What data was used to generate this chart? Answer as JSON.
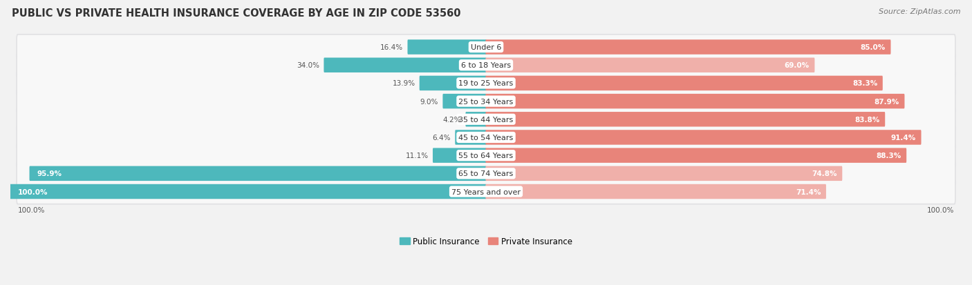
{
  "title": "PUBLIC VS PRIVATE HEALTH INSURANCE COVERAGE BY AGE IN ZIP CODE 53560",
  "source": "Source: ZipAtlas.com",
  "categories": [
    "Under 6",
    "6 to 18 Years",
    "19 to 25 Years",
    "25 to 34 Years",
    "35 to 44 Years",
    "45 to 54 Years",
    "55 to 64 Years",
    "65 to 74 Years",
    "75 Years and over"
  ],
  "public_values": [
    16.4,
    34.0,
    13.9,
    9.0,
    4.2,
    6.4,
    11.1,
    95.9,
    100.0
  ],
  "private_values": [
    85.0,
    69.0,
    83.3,
    87.9,
    83.8,
    91.4,
    88.3,
    74.8,
    71.4
  ],
  "public_color": "#4db8bc",
  "private_color": "#e8847a",
  "private_color_light": "#f0b0aa",
  "bg_color": "#f2f2f2",
  "row_bg_color": "#e2e2e4",
  "bar_inner_bg": "#f8f8f8",
  "title_fontsize": 10.5,
  "label_fontsize": 8,
  "value_fontsize": 7.5,
  "legend_fontsize": 8.5,
  "source_fontsize": 8
}
